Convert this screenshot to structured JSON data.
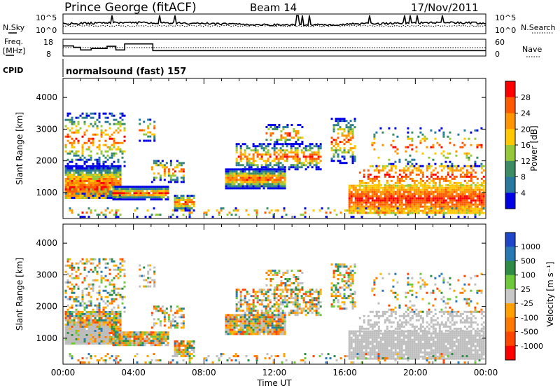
{
  "header": {
    "station": "Prince George (fitACF)",
    "beam": "Beam 14",
    "date": "17/Nov/2011"
  },
  "noise_panel": {
    "left_label": "N.Sky",
    "left_ticks": [
      "10^5",
      "10^0"
    ],
    "right_ticks": [
      "10^5",
      "10^0"
    ],
    "right_label": "N.Search"
  },
  "freq_panel": {
    "left_label_line1": "Freq.",
    "left_label_line2": "[MHz]",
    "left_ticks": [
      "18",
      "8"
    ],
    "right_ticks": [
      "60",
      "0"
    ],
    "right_label": "Nave",
    "freq_steps": [
      {
        "t": 0.0,
        "f": 14.0
      },
      {
        "t": 0.6,
        "f": 13.2
      },
      {
        "t": 1.0,
        "f": 11.6
      },
      {
        "t": 1.6,
        "f": 12.5
      },
      {
        "t": 2.5,
        "f": 13.8
      },
      {
        "t": 3.0,
        "f": 11.6
      },
      {
        "t": 3.5,
        "f": 15.2
      },
      {
        "t": 5.1,
        "f": 11.2
      },
      {
        "t": 24.0,
        "f": 11.2
      }
    ]
  },
  "cpid": {
    "label": "CPID",
    "program": "normalsound (fast) 157"
  },
  "chart_data": [
    {
      "type": "heatmap",
      "name": "power",
      "ylabel": "Slant Range [km]",
      "xlim": [
        0,
        24
      ],
      "ylim": [
        180,
        4600
      ],
      "yticks": [
        1000,
        2000,
        3000,
        4000
      ],
      "colorbar": {
        "label": "Power [dB]",
        "ticks": [
          "28",
          "24",
          "20",
          "16",
          "12",
          "8",
          "4"
        ],
        "colors": [
          "#ff0000",
          "#ff5a00",
          "#ff9600",
          "#ffc800",
          "#96c83c",
          "#3c8c64",
          "#2878a0",
          "#0000e6"
        ]
      }
    },
    {
      "type": "heatmap",
      "name": "velocity",
      "ylabel": "Slant Range [km]",
      "xlabel": "Time UT",
      "xlim": [
        0,
        24
      ],
      "xticks": [
        "00:00",
        "04:00",
        "08:00",
        "12:00",
        "16:00",
        "20:00",
        "00:00"
      ],
      "ylim": [
        180,
        4600
      ],
      "yticks": [
        1000,
        2000,
        3000,
        4000
      ],
      "colorbar": {
        "label": "Velocity [m s⁻¹]",
        "ticks": [
          "1000",
          "500",
          "100",
          "25",
          "-25",
          "-100",
          "-500",
          "-1000"
        ],
        "colors": [
          "#1e46c8",
          "#2878b4",
          "#2e8c46",
          "#6ec83c",
          "#c8c8c8",
          "#ffa000",
          "#ff7800",
          "#ff4600",
          "#ff0000"
        ]
      },
      "ground_scatter_color": "#bebebe"
    }
  ],
  "scatter_regions": [
    {
      "t0": 0.1,
      "t1": 3.3,
      "r0": 800,
      "r1": 1800,
      "kind": "iono",
      "dens": 0.95
    },
    {
      "t0": 0.1,
      "t1": 3.5,
      "r0": 1800,
      "r1": 3500,
      "kind": "iono",
      "dens": 0.35
    },
    {
      "t0": 2.8,
      "t1": 6.0,
      "r0": 750,
      "r1": 1150,
      "kind": "iono",
      "dens": 0.95
    },
    {
      "t0": 4.3,
      "t1": 5.2,
      "r0": 2600,
      "r1": 3300,
      "kind": "iono",
      "dens": 0.3
    },
    {
      "t0": 5.0,
      "t1": 6.8,
      "r0": 1300,
      "r1": 2000,
      "kind": "iono",
      "dens": 0.45
    },
    {
      "t0": 6.3,
      "t1": 7.4,
      "r0": 400,
      "r1": 900,
      "kind": "iono",
      "dens": 0.8
    },
    {
      "t0": 9.2,
      "t1": 12.6,
      "r0": 1100,
      "r1": 1700,
      "kind": "iono",
      "dens": 0.95
    },
    {
      "t0": 9.8,
      "t1": 14.6,
      "r0": 1700,
      "r1": 2500,
      "kind": "iono",
      "dens": 0.55
    },
    {
      "t0": 11.5,
      "t1": 13.6,
      "r0": 2500,
      "r1": 3100,
      "kind": "iono",
      "dens": 0.4
    },
    {
      "t0": 15.2,
      "t1": 16.6,
      "r0": 1900,
      "r1": 3300,
      "kind": "iono",
      "dens": 0.45
    },
    {
      "t0": 16.2,
      "t1": 23.9,
      "r0": 320,
      "r1": 1200,
      "kind": "ground",
      "dens": 0.9
    },
    {
      "t0": 16.8,
      "t1": 23.9,
      "r0": 1200,
      "r1": 1800,
      "kind": "ground",
      "dens": 0.4
    },
    {
      "t0": 17.5,
      "t1": 23.9,
      "r0": 1800,
      "r1": 3000,
      "kind": "iono",
      "dens": 0.15
    },
    {
      "t0": 0.1,
      "t1": 2.6,
      "r0": 800,
      "r1": 1400,
      "kind": "ground",
      "dens": 0.7
    },
    {
      "t0": 0.1,
      "t1": 23.9,
      "r0": 200,
      "r1": 500,
      "kind": "iono",
      "dens": 0.15
    }
  ]
}
